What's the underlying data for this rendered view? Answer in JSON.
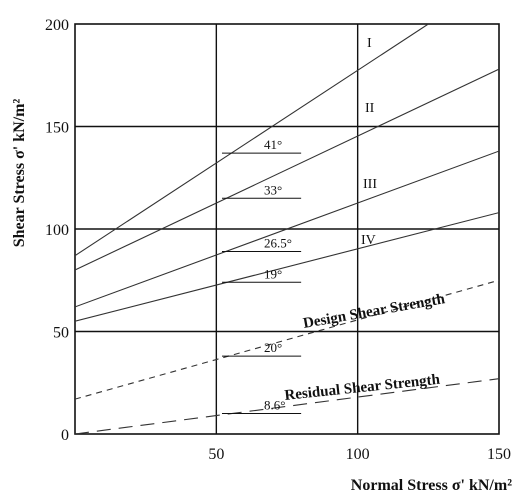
{
  "chart_data": {
    "type": "line",
    "xlabel": "Normal Stress σ' kN/m²",
    "ylabel": "Shear Stress σ' kN/m²",
    "xlim": [
      0,
      150
    ],
    "ylim": [
      0,
      200
    ],
    "x_ticks": [
      {
        "value": 50,
        "label": "50"
      },
      {
        "value": 100,
        "label": "100"
      },
      {
        "value": 150,
        "label": "150"
      }
    ],
    "y_ticks": [
      {
        "value": 0,
        "label": "0"
      },
      {
        "value": 50,
        "label": "50"
      },
      {
        "value": 100,
        "label": "100"
      },
      {
        "value": 150,
        "label": "150"
      },
      {
        "value": 200,
        "label": "200"
      }
    ],
    "grid": true,
    "series": [
      {
        "name": "I",
        "style": "solid",
        "x": [
          0,
          125
        ],
        "y": [
          87,
          200
        ]
      },
      {
        "name": "II",
        "style": "solid",
        "x": [
          0,
          150
        ],
        "y": [
          80,
          178
        ]
      },
      {
        "name": "III",
        "style": "solid",
        "x": [
          0,
          150
        ],
        "y": [
          62,
          138
        ]
      },
      {
        "name": "IV",
        "style": "solid",
        "x": [
          0,
          150
        ],
        "y": [
          55,
          108
        ]
      },
      {
        "name": "Design Shear Strength",
        "style": "dashed",
        "x": [
          0,
          150
        ],
        "y": [
          17,
          75
        ]
      },
      {
        "name": "Residual Shear Strength",
        "style": "longdash",
        "x": [
          0,
          150
        ],
        "y": [
          0,
          27
        ]
      }
    ],
    "angle_annotations": [
      {
        "label": "41°",
        "x": 52,
        "y": 137,
        "line_to_x": 80
      },
      {
        "label": "33°",
        "x": 52,
        "y": 115,
        "line_to_x": 80
      },
      {
        "label": "26.5°",
        "x": 52,
        "y": 89,
        "line_to_x": 80
      },
      {
        "label": "19°",
        "x": 52,
        "y": 74,
        "line_to_x": 80
      },
      {
        "label": "20°",
        "x": 52,
        "y": 38,
        "line_to_x": 80
      },
      {
        "label": "8.6°",
        "x": 52,
        "y": 10,
        "line_to_x": 80
      }
    ]
  }
}
